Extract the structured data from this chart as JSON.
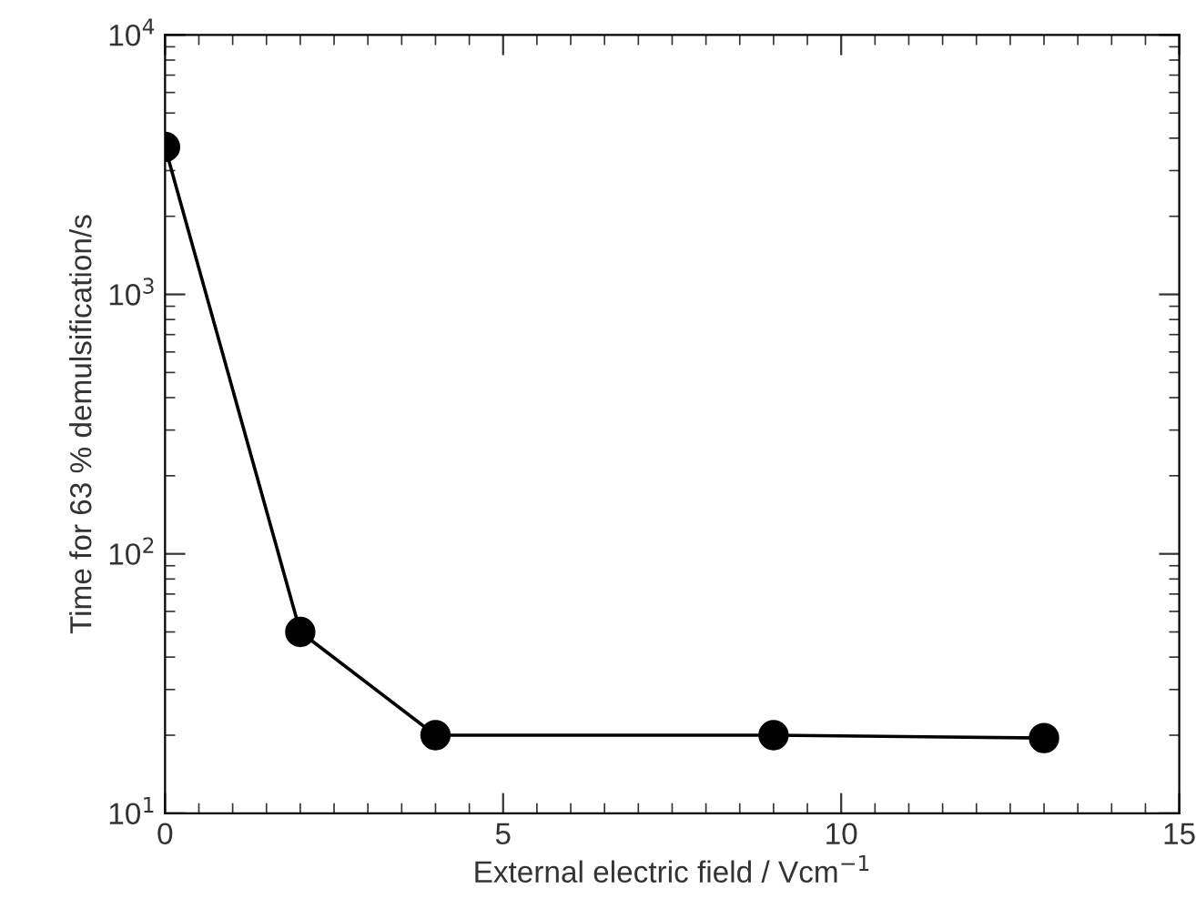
{
  "chart_data": {
    "type": "line",
    "xlabel": "External electric field / Vcm$^{−1}$",
    "ylabel": "Time for 63 % demulsification/s",
    "x": [
      0,
      2,
      4,
      9,
      13
    ],
    "series": [
      {
        "color": "#000000",
        "values": [
          3700,
          50,
          20,
          20,
          19.5
        ]
      }
    ],
    "log": "y",
    "xlim": [
      0,
      15
    ],
    "xticks": [
      0,
      5,
      10,
      15
    ],
    "ylim": [
      10,
      10000
    ],
    "yticks": [
      {
        "value": 10,
        "label": "10$^{1}$"
      },
      {
        "value": 100,
        "label": "10$^{2}$"
      },
      {
        "value": 1000,
        "label": "10$^{3}$"
      },
      {
        "value": 10000,
        "label": "10$^{4}$"
      }
    ],
    "marker": "circle",
    "line_style": "solid"
  }
}
